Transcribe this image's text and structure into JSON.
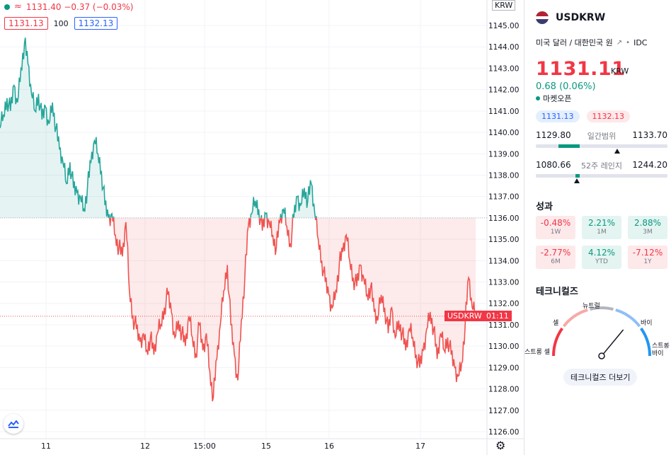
{
  "chart": {
    "symbol_label": "USDKRW",
    "time_label": "01:11",
    "currency_tag": "KRW",
    "top_quote": "1131.40 −0.37 (−0.03%)",
    "bid_box": "1131.13",
    "qty": "100",
    "ask_box": "1132.13",
    "y_ticks": [
      "1145.00",
      "1144.00",
      "1143.00",
      "1142.00",
      "1141.00",
      "1140.00",
      "1139.00",
      "1138.00",
      "1137.00",
      "1136.00",
      "1135.00",
      "1134.00",
      "1133.00",
      "1132.00",
      "1131.00",
      "1130.00",
      "1129.00",
      "1128.00",
      "1127.00",
      "1126.00"
    ],
    "x_ticks": [
      "11",
      "12",
      "15:00",
      "15",
      "16",
      "17"
    ],
    "ref_price": 1136.0,
    "last_price": 1131.4,
    "colors": {
      "up": "#26a69a",
      "down": "#ef5350"
    },
    "settings_icon": "gear-icon",
    "logo_icon": "tradingview-logo-icon"
  },
  "chart_data": {
    "type": "area",
    "series": [
      {
        "y": [
          1140.2,
          1140.8,
          1141.6,
          1141.0,
          1142.2,
          1141.4,
          1143.0,
          1144.2,
          1143.2,
          1141.8,
          1141.0,
          1141.8,
          1140.6,
          1141.2,
          1140.4,
          1141.4,
          1140.2,
          1139.2,
          1138.6,
          1137.6,
          1138.6,
          1137.4,
          1137.2,
          1137.0,
          1136.4,
          1137.4,
          1138.6,
          1139.6,
          1139.0,
          1138.2,
          1136.6,
          1136.0,
          1136.2,
          1135.2,
          1134.6,
          1134.2,
          1135.8,
          1132.6,
          1131.4,
          1130.8,
          1130.2,
          1130.6,
          1129.8,
          1130.4,
          1129.6,
          1130.6,
          1131.0,
          1131.8,
          1132.4,
          1131.6,
          1130.4,
          1131.2,
          1130.6,
          1130.0,
          1131.4,
          1130.4,
          1129.6,
          1131.0,
          1129.8,
          1130.6,
          1128.8,
          1127.6,
          1129.4,
          1131.0,
          1132.6,
          1133.8,
          1131.0,
          1129.6,
          1128.4,
          1131.2,
          1133.2,
          1135.6,
          1136.2,
          1136.8,
          1136.4,
          1135.4,
          1136.2,
          1135.8,
          1135.2,
          1134.6,
          1135.8,
          1136.4,
          1135.6,
          1134.8,
          1136.0,
          1137.0,
          1136.6,
          1137.4,
          1136.8,
          1137.6,
          1136.2,
          1135.0,
          1134.0,
          1133.0,
          1132.4,
          1131.8,
          1132.6,
          1133.8,
          1134.4,
          1135.2,
          1134.0,
          1133.2,
          1132.8,
          1133.8,
          1133.2,
          1132.4,
          1132.8,
          1131.6,
          1131.2,
          1132.4,
          1131.8,
          1130.6,
          1131.8,
          1130.4,
          1131.2,
          1130.6,
          1129.8,
          1130.8,
          1130.4,
          1129.6,
          1129.0,
          1129.8,
          1130.8,
          1131.6,
          1130.8,
          1129.4,
          1130.6,
          1129.8,
          1130.4,
          1129.6,
          1129.0,
          1128.6,
          1129.2,
          1131.0,
          1133.2,
          1131.8,
          1131.4
        ]
      }
    ],
    "ylim": [
      1125.6,
      1146.0
    ],
    "reference_line": 1136.0,
    "last_value_line": 1131.4
  },
  "panel": {
    "symbol": "USDKRW",
    "description": "미국 달러 / 대한민국 원",
    "source": "IDC",
    "price": "1131.11",
    "price_currency": "KRW",
    "change": "0.68 (0.06%)",
    "market_status": "마켓오픈",
    "bid": "1131.13",
    "ask": "1132.13",
    "day_range": {
      "low": "1129.80",
      "label": "일간범위",
      "high": "1133.70",
      "position": 0.62
    },
    "week52_range": {
      "low": "1080.66",
      "label": "52주 레인지",
      "high": "1244.20",
      "position": 0.31
    },
    "performance_title": "성과",
    "performance": [
      {
        "value": "-0.48%",
        "period": "1W",
        "dir": "neg"
      },
      {
        "value": "2.21%",
        "period": "1M",
        "dir": "pos"
      },
      {
        "value": "2.88%",
        "period": "3M",
        "dir": "pos"
      },
      {
        "value": "-2.77%",
        "period": "6M",
        "dir": "neg"
      },
      {
        "value": "4.12%",
        "period": "YTD",
        "dir": "pos"
      },
      {
        "value": "-7.12%",
        "period": "1Y",
        "dir": "neg"
      }
    ],
    "technicals_title": "테크니컬즈",
    "gauge_labels": {
      "neutral": "뉴트럴",
      "sell": "셀",
      "buy": "바이",
      "strong_sell": "스트롱 셀",
      "strong_buy": "스트롱 바이"
    },
    "gauge_value": 0.72,
    "technicals_button": "테크니컬즈 더보기"
  }
}
